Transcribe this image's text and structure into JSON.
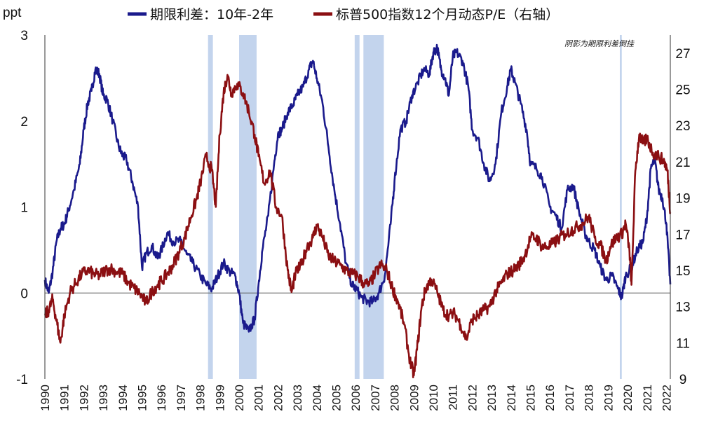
{
  "chart_data": {
    "type": "line",
    "left_axis": {
      "unit_label": "ppt",
      "range": [
        -1,
        3
      ],
      "ticks": [
        "3",
        "2",
        "1",
        "0",
        "-1"
      ],
      "negative_tick_color": "#d00000"
    },
    "right_axis": {
      "range": [
        9,
        28
      ],
      "ticks": [
        "27",
        "25",
        "23",
        "21",
        "19",
        "17",
        "15",
        "13",
        "11",
        "9"
      ]
    },
    "x_axis": {
      "range": [
        1990,
        2022.2
      ],
      "tick_labels": [
        "1990",
        "1991",
        "1992",
        "1993",
        "1994",
        "1995",
        "1996",
        "1997",
        "1998",
        "1999",
        "2000",
        "2001",
        "2002",
        "2003",
        "2004",
        "2005",
        "2006",
        "2007",
        "2008",
        "2009",
        "2010",
        "2011",
        "2012",
        "2013",
        "2014",
        "2015",
        "2016",
        "2017",
        "2018",
        "2019",
        "2020",
        "2021",
        "2022"
      ]
    },
    "annotation": "阴影为期限利差倒挂",
    "grid": false,
    "legend_position": "top",
    "shaded_periods": [
      {
        "start": 1998.4,
        "end": 1998.65
      },
      {
        "start": 2000.0,
        "end": 2000.9
      },
      {
        "start": 2005.95,
        "end": 2006.2
      },
      {
        "start": 2006.4,
        "end": 2007.45
      },
      {
        "start": 2019.6,
        "end": 2019.7
      }
    ],
    "series": [
      {
        "name": "期限利差：10年-2年",
        "axis": "left",
        "color": "#1a1a8c",
        "points": [
          [
            1990.0,
            0.15
          ],
          [
            1990.2,
            0.0
          ],
          [
            1990.4,
            0.25
          ],
          [
            1990.6,
            0.6
          ],
          [
            1990.8,
            0.75
          ],
          [
            1991.0,
            0.8
          ],
          [
            1991.2,
            0.95
          ],
          [
            1991.5,
            1.2
          ],
          [
            1991.8,
            1.5
          ],
          [
            1992.0,
            1.9
          ],
          [
            1992.2,
            2.2
          ],
          [
            1992.4,
            2.35
          ],
          [
            1992.6,
            2.6
          ],
          [
            1992.8,
            2.55
          ],
          [
            1993.0,
            2.3
          ],
          [
            1993.2,
            2.25
          ],
          [
            1993.5,
            2.0
          ],
          [
            1993.8,
            1.7
          ],
          [
            1994.0,
            1.6
          ],
          [
            1994.2,
            1.55
          ],
          [
            1994.5,
            1.3
          ],
          [
            1994.8,
            1.0
          ],
          [
            1995.0,
            0.3
          ],
          [
            1995.2,
            0.45
          ],
          [
            1995.5,
            0.55
          ],
          [
            1995.8,
            0.4
          ],
          [
            1996.0,
            0.5
          ],
          [
            1996.3,
            0.7
          ],
          [
            1996.6,
            0.6
          ],
          [
            1997.0,
            0.6
          ],
          [
            1997.3,
            0.45
          ],
          [
            1997.6,
            0.35
          ],
          [
            1998.0,
            0.2
          ],
          [
            1998.3,
            0.1
          ],
          [
            1998.6,
            0.05
          ],
          [
            1998.9,
            0.2
          ],
          [
            1999.2,
            0.35
          ],
          [
            1999.5,
            0.25
          ],
          [
            1999.8,
            0.2
          ],
          [
            2000.0,
            0.0
          ],
          [
            2000.2,
            -0.35
          ],
          [
            2000.5,
            -0.45
          ],
          [
            2000.8,
            -0.3
          ],
          [
            2001.0,
            0.1
          ],
          [
            2001.2,
            0.5
          ],
          [
            2001.5,
            0.9
          ],
          [
            2001.8,
            1.5
          ],
          [
            2002.0,
            1.85
          ],
          [
            2002.2,
            1.9
          ],
          [
            2002.5,
            2.1
          ],
          [
            2002.8,
            2.2
          ],
          [
            2003.0,
            2.3
          ],
          [
            2003.3,
            2.4
          ],
          [
            2003.6,
            2.6
          ],
          [
            2003.8,
            2.7
          ],
          [
            2004.0,
            2.5
          ],
          [
            2004.3,
            2.2
          ],
          [
            2004.6,
            1.7
          ],
          [
            2004.9,
            1.2
          ],
          [
            2005.2,
            0.8
          ],
          [
            2005.5,
            0.35
          ],
          [
            2005.8,
            0.1
          ],
          [
            2006.0,
            0.05
          ],
          [
            2006.3,
            -0.05
          ],
          [
            2006.6,
            -0.1
          ],
          [
            2006.9,
            -0.1
          ],
          [
            2007.2,
            0.0
          ],
          [
            2007.5,
            0.2
          ],
          [
            2007.8,
            0.8
          ],
          [
            2008.0,
            1.3
          ],
          [
            2008.3,
            1.9
          ],
          [
            2008.6,
            2.0
          ],
          [
            2008.9,
            2.3
          ],
          [
            2009.2,
            2.45
          ],
          [
            2009.5,
            2.6
          ],
          [
            2009.8,
            2.55
          ],
          [
            2010.0,
            2.8
          ],
          [
            2010.2,
            2.85
          ],
          [
            2010.4,
            2.6
          ],
          [
            2010.6,
            2.5
          ],
          [
            2010.8,
            2.3
          ],
          [
            2011.0,
            2.75
          ],
          [
            2011.2,
            2.8
          ],
          [
            2011.5,
            2.7
          ],
          [
            2011.8,
            2.4
          ],
          [
            2012.0,
            1.9
          ],
          [
            2012.3,
            1.8
          ],
          [
            2012.6,
            1.5
          ],
          [
            2012.9,
            1.3
          ],
          [
            2013.2,
            1.5
          ],
          [
            2013.5,
            2.1
          ],
          [
            2013.8,
            2.4
          ],
          [
            2014.0,
            2.6
          ],
          [
            2014.2,
            2.45
          ],
          [
            2014.5,
            2.2
          ],
          [
            2014.8,
            1.9
          ],
          [
            2015.0,
            1.5
          ],
          [
            2015.3,
            1.45
          ],
          [
            2015.6,
            1.35
          ],
          [
            2016.0,
            1.0
          ],
          [
            2016.3,
            0.9
          ],
          [
            2016.6,
            0.75
          ],
          [
            2016.9,
            1.2
          ],
          [
            2017.2,
            1.25
          ],
          [
            2017.5,
            0.95
          ],
          [
            2017.8,
            0.7
          ],
          [
            2018.0,
            0.6
          ],
          [
            2018.3,
            0.5
          ],
          [
            2018.6,
            0.3
          ],
          [
            2018.9,
            0.15
          ],
          [
            2019.2,
            0.2
          ],
          [
            2019.5,
            0.05
          ],
          [
            2019.7,
            -0.05
          ],
          [
            2019.9,
            0.2
          ],
          [
            2020.2,
            0.3
          ],
          [
            2020.5,
            0.5
          ],
          [
            2020.8,
            0.6
          ],
          [
            2021.0,
            0.9
          ],
          [
            2021.2,
            1.45
          ],
          [
            2021.4,
            1.55
          ],
          [
            2021.6,
            1.2
          ],
          [
            2021.8,
            1.1
          ],
          [
            2022.0,
            0.8
          ],
          [
            2022.2,
            0.1
          ]
        ]
      },
      {
        "name": "标普500指数12个月动态P/E（右轴）",
        "axis": "right",
        "color": "#8b0f12",
        "points": [
          [
            1990.0,
            12.5
          ],
          [
            1990.2,
            12.8
          ],
          [
            1990.4,
            13.4
          ],
          [
            1990.6,
            12.2
          ],
          [
            1990.8,
            11.0
          ],
          [
            1991.0,
            12.5
          ],
          [
            1991.3,
            13.8
          ],
          [
            1991.6,
            14.3
          ],
          [
            1991.9,
            14.8
          ],
          [
            1992.2,
            15.0
          ],
          [
            1992.5,
            14.8
          ],
          [
            1992.8,
            14.7
          ],
          [
            1993.1,
            15.0
          ],
          [
            1993.4,
            15.1
          ],
          [
            1993.7,
            14.9
          ],
          [
            1994.0,
            14.8
          ],
          [
            1994.3,
            14.3
          ],
          [
            1994.6,
            14.0
          ],
          [
            1994.9,
            13.7
          ],
          [
            1995.2,
            13.2
          ],
          [
            1995.5,
            13.8
          ],
          [
            1995.8,
            14.2
          ],
          [
            1996.0,
            14.4
          ],
          [
            1996.3,
            14.8
          ],
          [
            1996.6,
            15.3
          ],
          [
            1996.9,
            16.0
          ],
          [
            1997.2,
            16.8
          ],
          [
            1997.5,
            17.9
          ],
          [
            1997.8,
            18.9
          ],
          [
            1998.0,
            19.8
          ],
          [
            1998.3,
            21.3
          ],
          [
            1998.6,
            20.5
          ],
          [
            1998.8,
            18.5
          ],
          [
            1999.0,
            22.5
          ],
          [
            1999.2,
            24.8
          ],
          [
            1999.4,
            25.8
          ],
          [
            1999.6,
            24.8
          ],
          [
            1999.9,
            25.3
          ],
          [
            2000.2,
            24.8
          ],
          [
            2000.5,
            23.8
          ],
          [
            2000.8,
            22.5
          ],
          [
            2001.0,
            21.3
          ],
          [
            2001.3,
            19.8
          ],
          [
            2001.6,
            20.5
          ],
          [
            2001.9,
            18.5
          ],
          [
            2002.2,
            18.0
          ],
          [
            2002.5,
            15.0
          ],
          [
            2002.7,
            13.8
          ],
          [
            2002.9,
            14.8
          ],
          [
            2003.2,
            15.3
          ],
          [
            2003.5,
            16.3
          ],
          [
            2003.8,
            16.8
          ],
          [
            2004.0,
            17.5
          ],
          [
            2004.3,
            16.8
          ],
          [
            2004.6,
            15.8
          ],
          [
            2004.9,
            15.5
          ],
          [
            2005.2,
            15.3
          ],
          [
            2005.5,
            15.0
          ],
          [
            2005.8,
            14.8
          ],
          [
            2006.1,
            14.7
          ],
          [
            2006.4,
            14.3
          ],
          [
            2006.7,
            14.2
          ],
          [
            2007.0,
            14.8
          ],
          [
            2007.3,
            15.3
          ],
          [
            2007.6,
            15.0
          ],
          [
            2007.9,
            14.0
          ],
          [
            2008.2,
            13.2
          ],
          [
            2008.5,
            12.0
          ],
          [
            2008.8,
            10.0
          ],
          [
            2009.0,
            9.2
          ],
          [
            2009.2,
            11.0
          ],
          [
            2009.4,
            13.0
          ],
          [
            2009.6,
            14.0
          ],
          [
            2009.9,
            14.5
          ],
          [
            2010.2,
            13.8
          ],
          [
            2010.5,
            12.8
          ],
          [
            2010.8,
            12.5
          ],
          [
            2011.1,
            12.6
          ],
          [
            2011.4,
            12.0
          ],
          [
            2011.7,
            11.2
          ],
          [
            2012.0,
            12.3
          ],
          [
            2012.3,
            12.5
          ],
          [
            2012.6,
            12.8
          ],
          [
            2012.9,
            13.0
          ],
          [
            2013.2,
            13.8
          ],
          [
            2013.5,
            14.3
          ],
          [
            2013.8,
            14.8
          ],
          [
            2014.1,
            15.0
          ],
          [
            2014.4,
            15.3
          ],
          [
            2014.7,
            15.8
          ],
          [
            2015.0,
            16.8
          ],
          [
            2015.3,
            16.8
          ],
          [
            2015.6,
            16.3
          ],
          [
            2015.9,
            16.3
          ],
          [
            2016.2,
            16.5
          ],
          [
            2016.5,
            16.8
          ],
          [
            2016.8,
            17.0
          ],
          [
            2017.1,
            17.2
          ],
          [
            2017.4,
            17.4
          ],
          [
            2017.7,
            17.6
          ],
          [
            2018.0,
            18.0
          ],
          [
            2018.3,
            16.8
          ],
          [
            2018.6,
            16.4
          ],
          [
            2018.9,
            15.5
          ],
          [
            2019.1,
            16.3
          ],
          [
            2019.4,
            16.8
          ],
          [
            2019.7,
            17.0
          ],
          [
            2019.9,
            17.6
          ],
          [
            2020.1,
            16.0
          ],
          [
            2020.2,
            14.2
          ],
          [
            2020.4,
            20.5
          ],
          [
            2020.6,
            22.5
          ],
          [
            2020.8,
            22.0
          ],
          [
            2021.0,
            22.3
          ],
          [
            2021.3,
            21.5
          ],
          [
            2021.6,
            21.3
          ],
          [
            2021.9,
            21.0
          ],
          [
            2022.05,
            20.5
          ],
          [
            2022.2,
            18.2
          ]
        ]
      }
    ]
  }
}
